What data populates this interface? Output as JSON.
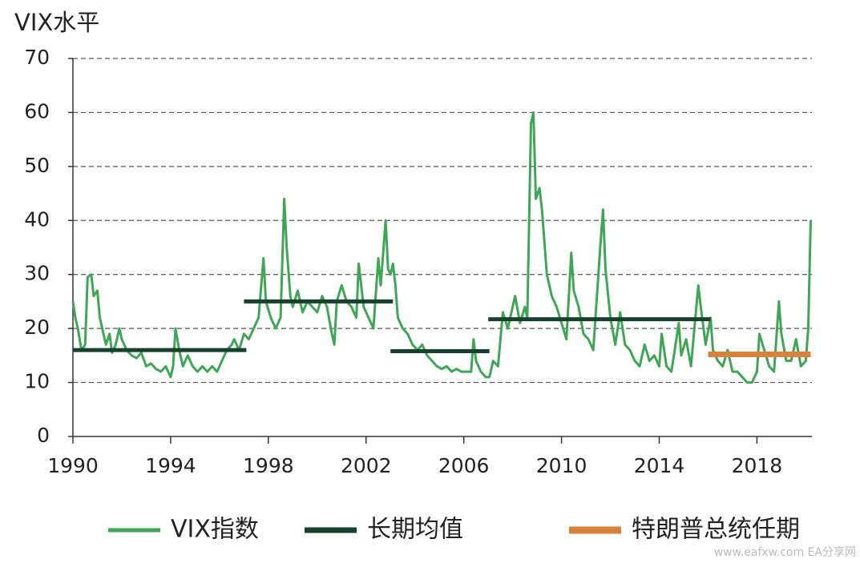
{
  "chart_data": {
    "type": "line",
    "y_axis_label": "VIX水平",
    "watermark": "www.eafxw.com  EA分享网",
    "xlim": [
      1990,
      2020.25
    ],
    "xticks": [
      1990,
      1994,
      1998,
      2002,
      2006,
      2010,
      2014,
      2018
    ],
    "ylim": [
      0,
      70
    ],
    "yticks": [
      0,
      10,
      20,
      30,
      40,
      50,
      60,
      70
    ],
    "grid": true,
    "series": [
      {
        "name": "VIX指数",
        "color": "#3ea655",
        "width": 3,
        "x": [
          1990.0,
          1990.1,
          1990.2,
          1990.35,
          1990.5,
          1990.6,
          1990.75,
          1990.85,
          1991.0,
          1991.1,
          1991.2,
          1991.35,
          1991.5,
          1991.6,
          1991.75,
          1991.9,
          1992.0,
          1992.2,
          1992.4,
          1992.6,
          1992.8,
          1993.0,
          1993.2,
          1993.4,
          1993.6,
          1993.8,
          1994.0,
          1994.1,
          1994.2,
          1994.35,
          1994.5,
          1994.7,
          1994.9,
          1995.1,
          1995.3,
          1995.5,
          1995.7,
          1995.9,
          1996.1,
          1996.3,
          1996.5,
          1996.6,
          1996.8,
          1997.0,
          1997.2,
          1997.4,
          1997.6,
          1997.8,
          1997.9,
          1998.1,
          1998.3,
          1998.5,
          1998.65,
          1998.75,
          1998.9,
          1999.0,
          1999.2,
          1999.4,
          1999.6,
          1999.8,
          2000.0,
          2000.2,
          2000.4,
          2000.6,
          2000.7,
          2000.8,
          2001.0,
          2001.2,
          2001.4,
          2001.6,
          2001.7,
          2001.8,
          2001.9,
          2002.1,
          2002.3,
          2002.5,
          2002.6,
          2002.8,
          2002.9,
          2003.0,
          2003.1,
          2003.2,
          2003.3,
          2003.5,
          2003.7,
          2003.9,
          2004.1,
          2004.3,
          2004.5,
          2004.7,
          2004.9,
          2005.1,
          2005.3,
          2005.5,
          2005.7,
          2005.9,
          2006.1,
          2006.3,
          2006.4,
          2006.5,
          2006.7,
          2006.9,
          2007.05,
          2007.2,
          2007.4,
          2007.6,
          2007.8,
          2007.95,
          2008.1,
          2008.3,
          2008.5,
          2008.6,
          2008.75,
          2008.85,
          2008.95,
          2009.1,
          2009.2,
          2009.4,
          2009.6,
          2009.8,
          2010.0,
          2010.2,
          2010.4,
          2010.5,
          2010.7,
          2010.9,
          2011.1,
          2011.3,
          2011.6,
          2011.7,
          2011.8,
          2012.0,
          2012.2,
          2012.4,
          2012.6,
          2012.8,
          2013.0,
          2013.2,
          2013.4,
          2013.6,
          2013.8,
          2014.0,
          2014.1,
          2014.3,
          2014.5,
          2014.8,
          2014.9,
          2015.1,
          2015.3,
          2015.6,
          2015.7,
          2015.9,
          2016.1,
          2016.2,
          2016.4,
          2016.6,
          2016.8,
          2017.0,
          2017.2,
          2017.4,
          2017.6,
          2017.8,
          2018.0,
          2018.1,
          2018.3,
          2018.5,
          2018.7,
          2018.9,
          2019.0,
          2019.2,
          2019.4,
          2019.6,
          2019.8,
          2020.0,
          2020.1,
          2020.2
        ],
        "values": [
          25,
          22,
          20,
          16,
          17,
          29.5,
          30,
          26,
          27,
          22,
          20,
          17,
          19,
          15.5,
          17,
          20,
          18,
          16,
          15,
          14.5,
          15.5,
          13,
          13.5,
          12.5,
          12,
          13,
          11,
          13,
          20,
          16,
          13,
          15,
          13,
          12,
          13,
          12,
          13,
          12,
          14,
          16,
          17,
          18,
          16,
          19,
          18,
          20,
          22,
          33,
          25,
          22,
          20,
          22,
          44,
          35,
          26,
          24,
          27,
          23,
          25,
          24,
          23,
          26,
          24,
          19,
          17,
          25,
          28,
          25,
          24,
          22,
          32,
          28,
          24,
          22,
          20,
          33,
          28,
          40,
          31,
          30,
          32,
          28,
          22,
          20,
          19,
          17,
          16,
          17,
          15,
          14,
          13,
          12.5,
          13,
          12,
          12.5,
          12,
          12,
          12,
          18,
          14,
          12,
          11,
          11,
          14,
          13,
          23,
          20,
          23,
          26,
          21,
          24,
          22,
          58,
          60,
          44,
          46,
          42,
          30,
          26,
          24,
          21,
          18,
          34,
          27,
          24,
          19,
          18,
          16,
          36,
          42,
          31,
          22,
          17,
          23,
          17,
          16,
          14,
          13,
          17,
          14,
          15,
          13,
          19,
          13,
          12,
          21,
          15,
          18,
          13,
          28,
          24,
          17,
          22,
          16,
          14,
          13,
          16,
          12,
          12,
          11,
          10,
          10,
          12,
          19,
          16,
          13,
          12,
          25,
          19,
          14,
          14,
          18,
          13,
          14,
          20,
          40
        ]
      },
      {
        "name": "长期均值",
        "color": "#17402f",
        "width": 5,
        "x": [
          1990,
          1997.1,
          1997.1,
          1997,
          2003.1,
          2003.1,
          2003,
          2007.05,
          2007.05,
          2007,
          2016.1
        ],
        "values": [
          16,
          16,
          null,
          25,
          25,
          null,
          15.8,
          15.8,
          null,
          21.7,
          21.7
        ]
      },
      {
        "name": "特朗普总统任期",
        "color": "#d9823b",
        "width": 7,
        "x": [
          2016,
          2020.2
        ],
        "values": [
          15.2,
          15.2
        ]
      }
    ]
  }
}
